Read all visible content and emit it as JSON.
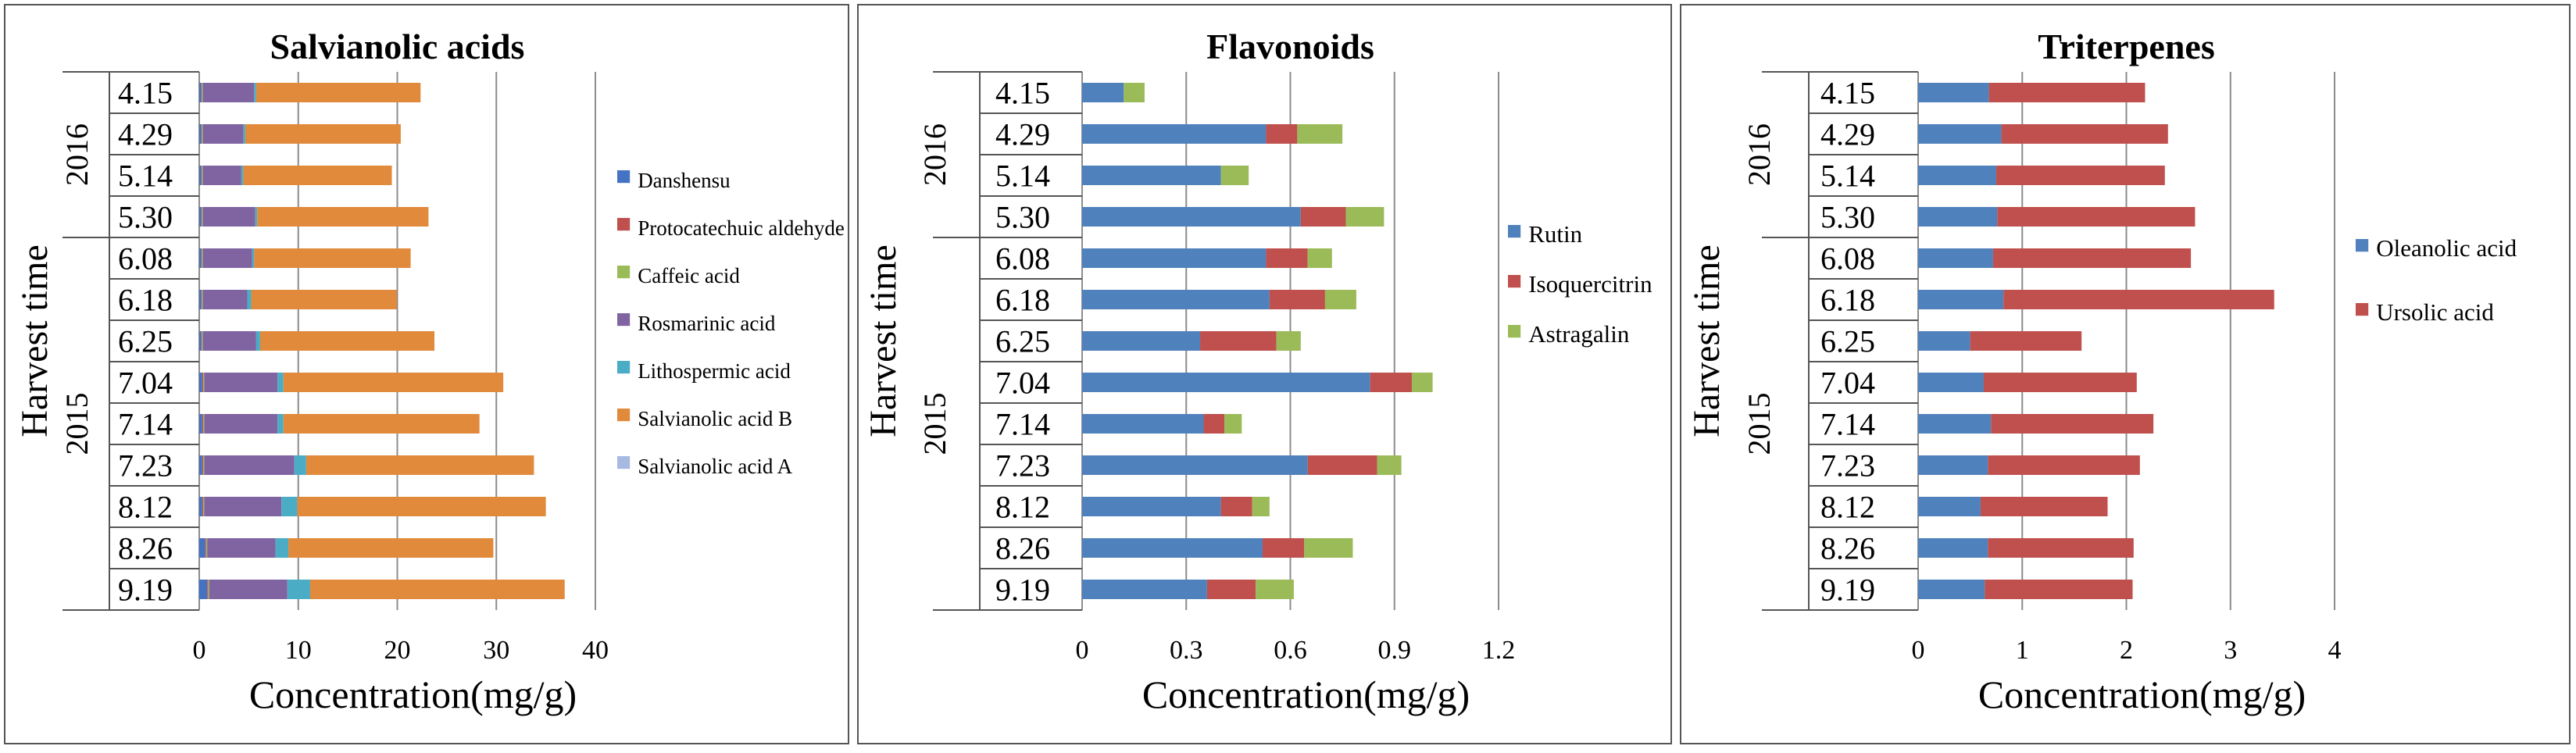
{
  "chart_data": [
    {
      "type": "bar",
      "stacked": true,
      "orientation": "horizontal",
      "title": "Salvianolic acids",
      "xlabel": "Concentration(mg/g)",
      "ylabel": "Harvest time",
      "xlim": [
        0,
        40
      ],
      "xticks": [
        0,
        10,
        20,
        30,
        40
      ],
      "gridlines": true,
      "legend_position": "right",
      "groups": [
        {
          "label": "2016",
          "categories": [
            "4.15",
            "4.29",
            "5.14",
            "5.30"
          ]
        },
        {
          "label": "2015",
          "categories": [
            "6.08",
            "6.18",
            "6.25",
            "7.04",
            "7.14",
            "7.23",
            "8.12",
            "8.26",
            "9.19"
          ]
        }
      ],
      "categories": [
        "4.15",
        "4.29",
        "5.14",
        "5.30",
        "6.08",
        "6.18",
        "6.25",
        "7.04",
        "7.14",
        "7.23",
        "8.12",
        "8.26",
        "9.19"
      ],
      "series": [
        {
          "name": "Danshensu",
          "color": "#4472c4",
          "values": [
            0.2,
            0.2,
            0.2,
            0.2,
            0.2,
            0.2,
            0.2,
            0.3,
            0.3,
            0.3,
            0.3,
            0.6,
            0.8
          ]
        },
        {
          "name": "Protocatechuic aldehyde",
          "color": "#c0504d",
          "values": [
            0.05,
            0.05,
            0.05,
            0.05,
            0.05,
            0.05,
            0.05,
            0.1,
            0.1,
            0.1,
            0.1,
            0.1,
            0.1
          ]
        },
        {
          "name": "Caffeic acid",
          "color": "#9bbb59",
          "values": [
            0.1,
            0.1,
            0.1,
            0.1,
            0.1,
            0.1,
            0.1,
            0.1,
            0.1,
            0.1,
            0.1,
            0.1,
            0.1
          ]
        },
        {
          "name": "Rosmarinic acid",
          "color": "#8064a2",
          "values": [
            5.2,
            4.1,
            3.9,
            5.3,
            5.0,
            4.5,
            5.4,
            7.4,
            7.4,
            9.1,
            7.8,
            6.9,
            7.9
          ]
        },
        {
          "name": "Lithospermic acid",
          "color": "#4bacc6",
          "values": [
            0.2,
            0.2,
            0.2,
            0.2,
            0.2,
            0.4,
            0.4,
            0.6,
            0.6,
            1.2,
            1.6,
            1.3,
            2.3
          ]
        },
        {
          "name": "Salvianolic acid B",
          "color": "#e28a3b",
          "values": [
            16.6,
            15.7,
            15.0,
            17.3,
            15.8,
            14.7,
            17.6,
            22.2,
            19.8,
            23.0,
            25.1,
            20.7,
            25.7
          ]
        },
        {
          "name": "Salvianolic acid A",
          "color": "#a7b9e0",
          "values": [
            0,
            0,
            0,
            0,
            0,
            0,
            0,
            0,
            0,
            0,
            0,
            0,
            0
          ]
        }
      ]
    },
    {
      "type": "bar",
      "stacked": true,
      "orientation": "horizontal",
      "title": "Flavonoids",
      "xlabel": "Concentration(mg/g)",
      "ylabel": "Harvest time",
      "xlim": [
        0,
        1.2
      ],
      "xticks": [
        "0",
        "0.3",
        "0.6",
        "0.9",
        "1.2"
      ],
      "gridlines": true,
      "legend_position": "right",
      "groups": [
        {
          "label": "2016",
          "categories": [
            "4.15",
            "4.29",
            "5.14",
            "5.30"
          ]
        },
        {
          "label": "2015",
          "categories": [
            "6.08",
            "6.18",
            "6.25",
            "7.04",
            "7.14",
            "7.23",
            "8.12",
            "8.26",
            "9.19"
          ]
        }
      ],
      "categories": [
        "4.15",
        "4.29",
        "5.14",
        "5.30",
        "6.08",
        "6.18",
        "6.25",
        "7.04",
        "7.14",
        "7.23",
        "8.12",
        "8.26",
        "9.19"
      ],
      "series": [
        {
          "name": "Rutin",
          "color": "#4f81bd",
          "values": [
            0.12,
            0.53,
            0.4,
            0.63,
            0.53,
            0.54,
            0.34,
            0.83,
            0.35,
            0.65,
            0.4,
            0.52,
            0.36
          ]
        },
        {
          "name": "Isoquercitrin",
          "color": "#c0504d",
          "values": [
            0,
            0.09,
            0,
            0.13,
            0.12,
            0.16,
            0.22,
            0.12,
            0.06,
            0.2,
            0.09,
            0.12,
            0.14
          ]
        },
        {
          "name": "Astragalin",
          "color": "#9bbb59",
          "values": [
            0.06,
            0.13,
            0.08,
            0.11,
            0.07,
            0.09,
            0.07,
            0.06,
            0.05,
            0.07,
            0.05,
            0.14,
            0.11
          ]
        }
      ]
    },
    {
      "type": "bar",
      "stacked": true,
      "orientation": "horizontal",
      "title": "Triterpenes",
      "xlabel": "Concentration(mg/g)",
      "ylabel": "Harvest time",
      "xlim": [
        0,
        4
      ],
      "xticks": [
        0,
        1,
        2,
        3,
        4
      ],
      "gridlines": true,
      "legend_position": "right",
      "groups": [
        {
          "label": "2016",
          "categories": [
            "4.15",
            "4.29",
            "5.14",
            "5.30"
          ]
        },
        {
          "label": "2015",
          "categories": [
            "6.08",
            "6.18",
            "6.25",
            "7.04",
            "7.14",
            "7.23",
            "8.12",
            "8.26",
            "9.19"
          ]
        }
      ],
      "categories": [
        "4.15",
        "4.29",
        "5.14",
        "5.30",
        "6.08",
        "6.18",
        "6.25",
        "7.04",
        "7.14",
        "7.23",
        "8.12",
        "8.26",
        "9.19"
      ],
      "series": [
        {
          "name": "Oleanolic acid",
          "color": "#4f81bd",
          "values": [
            0.68,
            0.8,
            0.75,
            0.76,
            0.72,
            0.82,
            0.5,
            0.63,
            0.7,
            0.67,
            0.6,
            0.67,
            0.64
          ]
        },
        {
          "name": "Ursolic acid",
          "color": "#c0504d",
          "values": [
            1.5,
            1.6,
            1.62,
            1.9,
            1.9,
            2.6,
            1.07,
            1.47,
            1.56,
            1.46,
            1.22,
            1.4,
            1.42
          ]
        }
      ]
    }
  ]
}
